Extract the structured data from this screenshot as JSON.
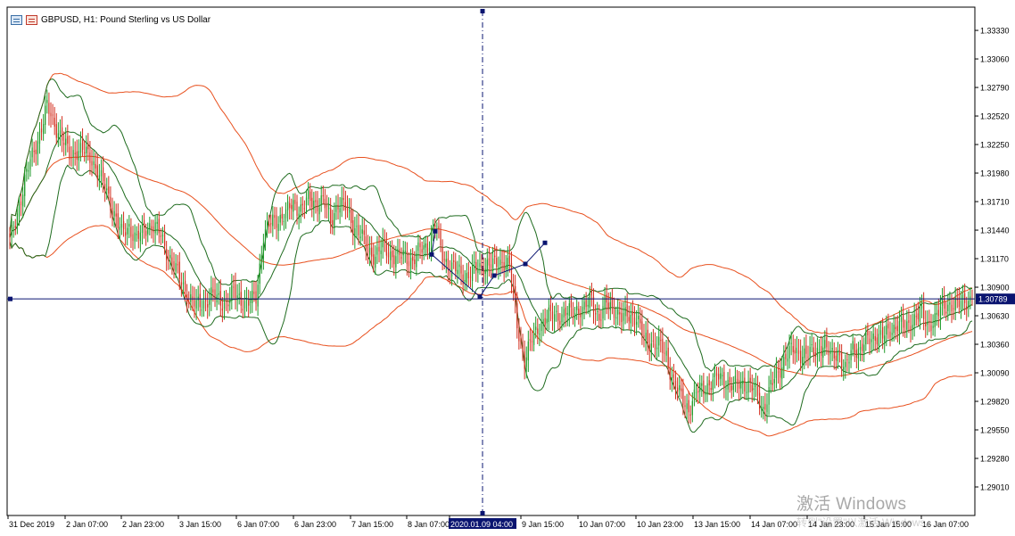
{
  "header": {
    "symbol_title": "GBPUSD, H1:  Pound Sterling vs US Dollar",
    "icons": [
      "chart-window-icon",
      "indicator-icon"
    ]
  },
  "watermark": {
    "title": "激活 Windows",
    "subtitle": "转到\"设置\"以激活 Windows。"
  },
  "colors": {
    "bull": "#1e9a28",
    "bear": "#d32f1f",
    "bb_inner": "#1e6b1e",
    "bb_outer": "#e8501e",
    "price_line": "#0a1470",
    "price_label_bg": "#0a1470",
    "crosshair": "#0a1470"
  },
  "chart_data": {
    "type": "candlestick",
    "symbol": "GBPUSD",
    "timeframe": "H1",
    "title": "GBPUSD, H1:  Pound Sterling vs US Dollar",
    "ylim": [
      1.2874,
      1.3355
    ],
    "y_ticks": [
      "1.33330",
      "1.33060",
      "1.32790",
      "1.32520",
      "1.32250",
      "1.31980",
      "1.31710",
      "1.31440",
      "1.31170",
      "1.30900",
      "1.30630",
      "1.30360",
      "1.30090",
      "1.29820",
      "1.29550",
      "1.29280",
      "1.29010"
    ],
    "x_ticks": [
      "31 Dec 2019",
      "2 Jan 07:00",
      "2 Jan 23:00",
      "3 Jan 15:00",
      "6 Jan 07:00",
      "6 Jan 23:00",
      "7 Jan 15:00",
      "8 Jan 07:00",
      "2020.01.09 04:00",
      "9 Jan 15:00",
      "10 Jan 07:00",
      "10 Jan 23:00",
      "13 Jan 15:00",
      "14 Jan 07:00",
      "14 Jan 23:00",
      "15 Jan 15:00",
      "16 Jan 07:00"
    ],
    "highlighted_x_label": "2020.01.09 04:00",
    "current_price": 1.30789,
    "current_price_label": "1.30789",
    "close_path": [
      [
        0,
        1.3133
      ],
      [
        4,
        1.316
      ],
      [
        8,
        1.319
      ],
      [
        12,
        1.3215
      ],
      [
        16,
        1.3235
      ],
      [
        20,
        1.326
      ],
      [
        24,
        1.3245
      ],
      [
        28,
        1.323
      ],
      [
        32,
        1.3215
      ],
      [
        36,
        1.322
      ],
      [
        40,
        1.3218
      ],
      [
        44,
        1.3212
      ],
      [
        48,
        1.3195
      ],
      [
        52,
        1.318
      ],
      [
        56,
        1.316
      ],
      [
        60,
        1.314
      ],
      [
        64,
        1.3148
      ],
      [
        68,
        1.3135
      ],
      [
        72,
        1.3145
      ],
      [
        76,
        1.315
      ],
      [
        80,
        1.3142
      ],
      [
        84,
        1.3125
      ],
      [
        88,
        1.311
      ],
      [
        92,
        1.3095
      ],
      [
        96,
        1.308
      ],
      [
        100,
        1.3072
      ],
      [
        104,
        1.3076
      ],
      [
        108,
        1.3082
      ],
      [
        112,
        1.3078
      ],
      [
        116,
        1.3075
      ],
      [
        120,
        1.3085
      ],
      [
        124,
        1.3078
      ],
      [
        128,
        1.3075
      ],
      [
        132,
        1.308
      ],
      [
        136,
        1.314
      ],
      [
        140,
        1.315
      ],
      [
        144,
        1.3155
      ],
      [
        148,
        1.316
      ],
      [
        152,
        1.3168
      ],
      [
        156,
        1.3165
      ],
      [
        160,
        1.3172
      ],
      [
        164,
        1.317
      ],
      [
        168,
        1.3172
      ],
      [
        172,
        1.3152
      ],
      [
        176,
        1.317
      ],
      [
        180,
        1.3165
      ],
      [
        184,
        1.315
      ],
      [
        188,
        1.314
      ],
      [
        192,
        1.3125
      ],
      [
        196,
        1.312
      ],
      [
        200,
        1.3128
      ],
      [
        204,
        1.3122
      ],
      [
        208,
        1.3118
      ],
      [
        212,
        1.312
      ],
      [
        216,
        1.3115
      ],
      [
        220,
        1.3125
      ],
      [
        224,
        1.313
      ],
      [
        228,
        1.315
      ],
      [
        232,
        1.312
      ],
      [
        236,
        1.311
      ],
      [
        240,
        1.3105
      ],
      [
        244,
        1.31
      ],
      [
        248,
        1.3105
      ],
      [
        252,
        1.3108
      ],
      [
        256,
        1.3112
      ],
      [
        260,
        1.311
      ],
      [
        264,
        1.3115
      ],
      [
        268,
        1.311
      ],
      [
        272,
        1.3055
      ],
      [
        276,
        1.302
      ],
      [
        280,
        1.304
      ],
      [
        284,
        1.3055
      ],
      [
        288,
        1.306
      ],
      [
        292,
        1.3065
      ],
      [
        296,
        1.3063
      ],
      [
        300,
        1.3066
      ],
      [
        304,
        1.307
      ],
      [
        308,
        1.3068
      ],
      [
        312,
        1.308
      ],
      [
        316,
        1.306
      ],
      [
        320,
        1.3075
      ],
      [
        324,
        1.307
      ],
      [
        328,
        1.306
      ],
      [
        332,
        1.3064
      ],
      [
        336,
        1.3062
      ],
      [
        340,
        1.304
      ],
      [
        344,
        1.3038
      ],
      [
        348,
        1.3035
      ],
      [
        352,
        1.3025
      ],
      [
        356,
        1.3
      ],
      [
        360,
        1.2985
      ],
      [
        364,
        1.2975
      ],
      [
        368,
        1.299
      ],
      [
        372,
        1.2995
      ],
      [
        376,
        1.3
      ],
      [
        380,
        1.3005
      ],
      [
        384,
        1.3002
      ],
      [
        388,
        1.2995
      ],
      [
        392,
        1.3
      ],
      [
        396,
        1.2998
      ],
      [
        400,
        1.299
      ],
      [
        404,
        1.2975
      ],
      [
        408,
        1.2995
      ],
      [
        412,
        1.301
      ],
      [
        416,
        1.3025
      ],
      [
        420,
        1.303
      ],
      [
        424,
        1.3028
      ],
      [
        428,
        1.3026
      ],
      [
        432,
        1.303
      ],
      [
        436,
        1.3035
      ],
      [
        440,
        1.3025
      ],
      [
        444,
        1.303
      ],
      [
        448,
        1.301
      ],
      [
        452,
        1.3035
      ],
      [
        456,
        1.303
      ],
      [
        460,
        1.304
      ],
      [
        464,
        1.3045
      ],
      [
        468,
        1.3042
      ],
      [
        472,
        1.305
      ],
      [
        476,
        1.3055
      ],
      [
        480,
        1.305
      ],
      [
        484,
        1.306
      ],
      [
        488,
        1.3065
      ],
      [
        492,
        1.3055
      ],
      [
        496,
        1.306
      ],
      [
        500,
        1.307
      ],
      [
        504,
        1.3075
      ],
      [
        508,
        1.3072
      ],
      [
        512,
        1.3078
      ],
      [
        516,
        1.3079
      ]
    ],
    "last_bar_index": 516,
    "price_line_extends": true,
    "indicators": [
      {
        "name": "Bollinger Bands (inner)",
        "color": "bb_inner"
      },
      {
        "name": "Bollinger Bands (outer)",
        "color": "bb_outer"
      }
    ],
    "objects": [
      {
        "type": "vertical-line",
        "label": "2020.01.09 04:00"
      },
      {
        "type": "pattern-lines",
        "points": [
          [
            0,
            1.3143
          ],
          [
            1,
            1.3121
          ],
          [
            2,
            1.3081
          ],
          [
            3,
            1.3101
          ],
          [
            4,
            1.3112
          ],
          [
            5,
            1.3132
          ]
        ]
      }
    ],
    "grid": false
  }
}
